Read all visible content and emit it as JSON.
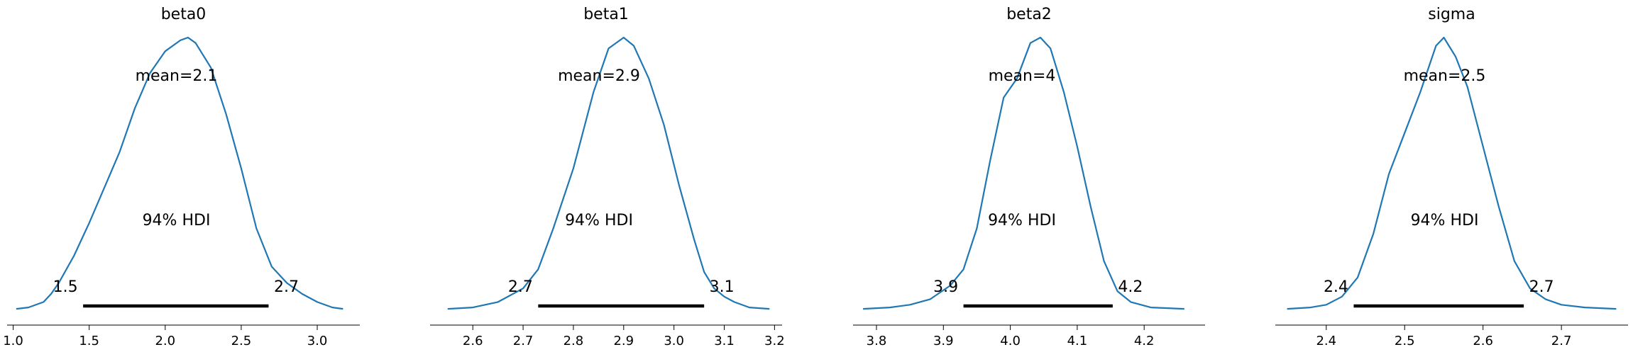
{
  "chart_data": [
    {
      "type": "line",
      "title": "beta0",
      "mean_label": "mean=2.1",
      "hdi_label": "94% HDI",
      "hdi_low_label": "1.5",
      "hdi_high_label": "2.7",
      "hdi": [
        1.46,
        2.68
      ],
      "xlim": [
        0.96,
        3.28
      ],
      "ticks": [
        1.0,
        1.5,
        2.0,
        2.5,
        3.0
      ],
      "tick_labels": [
        "1.0",
        "1.5",
        "2.0",
        "2.5",
        "3.0"
      ],
      "series": [
        {
          "color": "#1f77b4",
          "x": [
            1.02,
            1.1,
            1.2,
            1.25,
            1.3,
            1.4,
            1.5,
            1.6,
            1.7,
            1.8,
            1.9,
            2.0,
            2.1,
            2.15,
            2.2,
            2.3,
            2.4,
            2.5,
            2.6,
            2.7,
            2.8,
            2.9,
            3.0,
            3.1,
            3.17
          ],
          "y": [
            0.005,
            0.01,
            0.03,
            0.06,
            0.1,
            0.2,
            0.32,
            0.45,
            0.58,
            0.74,
            0.87,
            0.95,
            0.99,
            1.0,
            0.98,
            0.89,
            0.72,
            0.52,
            0.3,
            0.16,
            0.1,
            0.06,
            0.03,
            0.01,
            0.005
          ]
        }
      ]
    },
    {
      "type": "line",
      "title": "beta1",
      "mean_label": "mean=2.9",
      "hdi_label": "94% HDI",
      "hdi_low_label": "2.7",
      "hdi_high_label": "3.1",
      "hdi": [
        2.73,
        3.06
      ],
      "xlim": [
        2.515,
        3.215
      ],
      "ticks": [
        2.6,
        2.7,
        2.8,
        2.9,
        3.0,
        3.1,
        3.2
      ],
      "tick_labels": [
        "2.6",
        "2.7",
        "2.8",
        "2.9",
        "3.0",
        "3.1",
        "3.2"
      ],
      "series": [
        {
          "color": "#1f77b4",
          "x": [
            2.55,
            2.6,
            2.65,
            2.7,
            2.73,
            2.76,
            2.8,
            2.84,
            2.87,
            2.9,
            2.92,
            2.95,
            2.98,
            3.01,
            3.04,
            3.06,
            3.08,
            3.1,
            3.12,
            3.15,
            3.19
          ],
          "y": [
            0.005,
            0.01,
            0.03,
            0.08,
            0.15,
            0.3,
            0.52,
            0.8,
            0.96,
            1.0,
            0.97,
            0.85,
            0.68,
            0.46,
            0.26,
            0.14,
            0.08,
            0.05,
            0.03,
            0.01,
            0.005
          ]
        }
      ]
    },
    {
      "type": "line",
      "title": "beta2",
      "mean_label": "mean=4",
      "hdi_label": "94% HDI",
      "hdi_low_label": "3.9",
      "hdi_high_label": "4.2",
      "hdi": [
        3.93,
        4.153
      ],
      "xlim": [
        3.765,
        4.291
      ],
      "ticks": [
        3.8,
        3.9,
        4.0,
        4.1,
        4.2
      ],
      "tick_labels": [
        "3.8",
        "3.9",
        "4.0",
        "4.1",
        "4.2"
      ],
      "series": [
        {
          "color": "#1f77b4",
          "x": [
            3.78,
            3.82,
            3.85,
            3.88,
            3.91,
            3.93,
            3.95,
            3.97,
            3.99,
            4.01,
            4.03,
            4.045,
            4.06,
            4.08,
            4.1,
            4.12,
            4.14,
            4.16,
            4.18,
            4.21,
            4.26
          ],
          "y": [
            0.005,
            0.01,
            0.02,
            0.04,
            0.09,
            0.15,
            0.3,
            0.55,
            0.78,
            0.85,
            0.98,
            1.0,
            0.96,
            0.8,
            0.6,
            0.38,
            0.18,
            0.07,
            0.03,
            0.01,
            0.005
          ]
        }
      ]
    },
    {
      "type": "line",
      "title": "sigma",
      "mean_label": "mean=2.5",
      "hdi_label": "94% HDI",
      "hdi_low_label": "2.4",
      "hdi_high_label": "2.7",
      "hdi": [
        2.435,
        2.652
      ],
      "xlim": [
        2.335,
        2.785
      ],
      "ticks": [
        2.4,
        2.5,
        2.6,
        2.7
      ],
      "tick_labels": [
        "2.4",
        "2.5",
        "2.6",
        "2.7"
      ],
      "series": [
        {
          "color": "#1f77b4",
          "x": [
            2.35,
            2.38,
            2.4,
            2.42,
            2.44,
            2.46,
            2.48,
            2.5,
            2.52,
            2.54,
            2.55,
            2.565,
            2.58,
            2.6,
            2.62,
            2.64,
            2.66,
            2.68,
            2.7,
            2.73,
            2.77
          ],
          "y": [
            0.005,
            0.01,
            0.02,
            0.05,
            0.12,
            0.28,
            0.5,
            0.65,
            0.8,
            0.97,
            1.0,
            0.93,
            0.82,
            0.6,
            0.38,
            0.18,
            0.08,
            0.04,
            0.02,
            0.01,
            0.005
          ]
        }
      ]
    }
  ]
}
